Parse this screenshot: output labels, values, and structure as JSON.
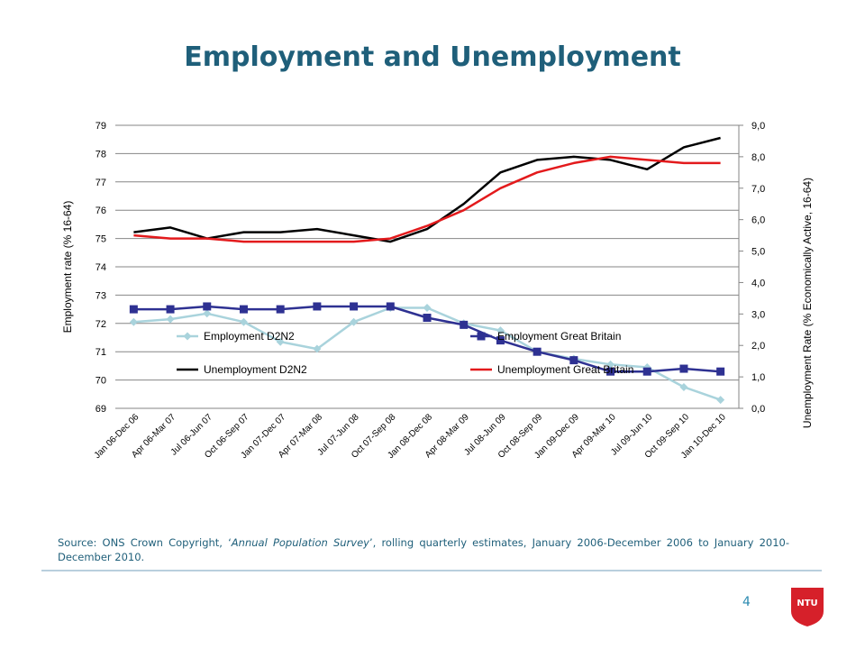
{
  "slide": {
    "title": "Employment and Unemployment",
    "page_number": "4",
    "logo_text": "NTU",
    "source": {
      "prefix": "Source: ONS Crown Copyright, ‘",
      "italic": "Annual Population Survey",
      "suffix": "’, rolling quarterly estimates, January 2006-December 2006 to January 2010-December 2010."
    }
  },
  "colors": {
    "title": "#1f5f7a",
    "employment_d2n2": "#a9d3dc",
    "employment_gb": "#2e3192",
    "unemployment_d2n2": "#000000",
    "unemployment_gb": "#e31a1c",
    "grid": "#868686",
    "logo": "#d6202a"
  },
  "chart_data": {
    "type": "line",
    "title": "",
    "xlabel": "",
    "ylabel": "Employment rate (% 16-64)",
    "y2label": "Unemployment Rate (% Economically Active, 16-64)",
    "ylim": [
      69,
      79
    ],
    "y2lim": [
      0,
      9
    ],
    "y_ticks": [
      "79",
      "78",
      "77",
      "76",
      "75",
      "74",
      "73",
      "72",
      "71",
      "70",
      "69"
    ],
    "y2_ticks": [
      "9,0",
      "8,0",
      "7,0",
      "6,0",
      "5,0",
      "4,0",
      "3,0",
      "2,0",
      "1,0",
      "0,0"
    ],
    "grid": true,
    "legend_position": "inside-bottom",
    "categories": [
      "Jan 06-Dec 06",
      "Apr 06-Mar 07",
      "Jul 06-Jun 07",
      "Oct 06-Sep 07",
      "Jan 07-Dec 07",
      "Apr 07-Mar 08",
      "Jul 07-Jun 08",
      "Oct 07-Sep 08",
      "Jan 08-Dec 08",
      "Apr 08-Mar 09",
      "Jul 08-Jun 09",
      "Oct 08-Sep 09",
      "Jan 09-Dec 09",
      "Apr 09-Mar 10",
      "Jul 09-Jun 10",
      "Oct 09-Sep 10",
      "Jan 10-Dec 10"
    ],
    "series": [
      {
        "name": "Employment D2N2",
        "axis": "left",
        "marker": "diamond",
        "color_key": "employment_d2n2",
        "values": [
          72.05,
          72.15,
          72.35,
          72.05,
          71.35,
          71.1,
          72.05,
          72.55,
          72.55,
          72.0,
          71.75,
          71.0,
          70.75,
          70.55,
          70.45,
          69.75,
          69.3
        ]
      },
      {
        "name": "Employment Great Britain",
        "axis": "left",
        "marker": "square",
        "color_key": "employment_gb",
        "values": [
          72.5,
          72.5,
          72.6,
          72.5,
          72.5,
          72.6,
          72.6,
          72.6,
          72.2,
          71.95,
          71.4,
          71.0,
          70.7,
          70.3,
          70.3,
          70.4,
          70.3
        ]
      },
      {
        "name": "Unemployment D2N2",
        "axis": "right",
        "marker": "none",
        "color_key": "unemployment_d2n2",
        "values": [
          5.6,
          5.75,
          5.4,
          5.6,
          5.6,
          5.7,
          5.5,
          5.3,
          5.7,
          6.5,
          7.5,
          7.9,
          8.0,
          7.9,
          7.6,
          8.3,
          8.6
        ]
      },
      {
        "name": "Unemployment Great Britain",
        "axis": "right",
        "marker": "none",
        "color_key": "unemployment_gb",
        "values": [
          5.5,
          5.4,
          5.4,
          5.3,
          5.3,
          5.3,
          5.3,
          5.4,
          5.8,
          6.3,
          7.0,
          7.5,
          7.8,
          8.0,
          7.9,
          7.8,
          7.8
        ]
      }
    ]
  }
}
